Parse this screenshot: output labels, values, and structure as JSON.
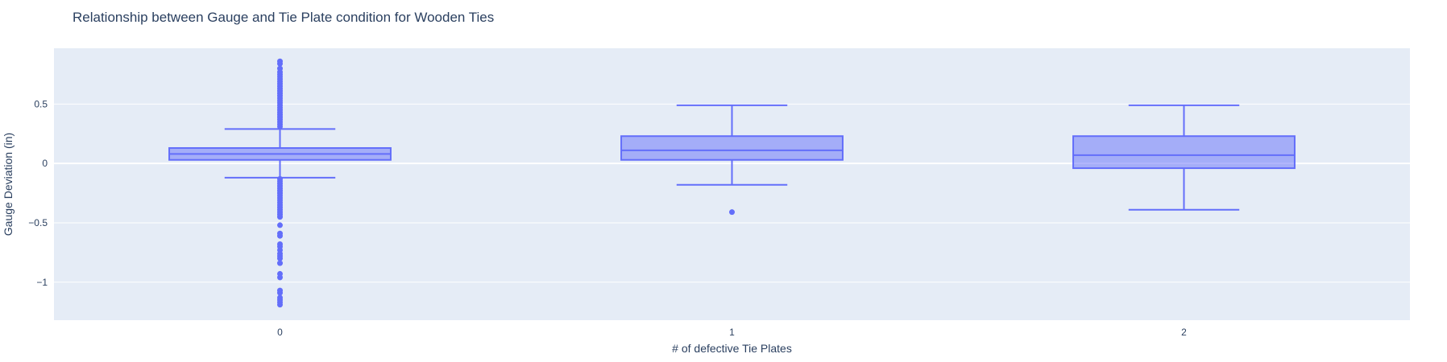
{
  "chart_data": {
    "type": "box",
    "title": "Relationship between Gauge and Tie Plate condition for Wooden Ties",
    "xlabel": "# of defective Tie Plates",
    "ylabel": "Gauge Deviation (in)",
    "ylim": [
      -1.32,
      0.97
    ],
    "yticks": [
      {
        "value": 0.5,
        "label": "0.5"
      },
      {
        "value": 0,
        "label": "0"
      },
      {
        "value": -0.5,
        "label": "−0.5"
      },
      {
        "value": -1,
        "label": "−1"
      }
    ],
    "grid": true,
    "colors": {
      "box_line": "#636efa",
      "box_fill": "rgba(99,110,250,0.5)",
      "plot_bg": "#e5ecf6",
      "grid": "#ffffff",
      "text": "#2a3f5f"
    },
    "categories": [
      "0",
      "1",
      "2"
    ],
    "boxes": [
      {
        "category": "0",
        "lower_whisker": -0.12,
        "q1": 0.03,
        "median": 0.08,
        "q3": 0.13,
        "upper_whisker": 0.29,
        "outliers": [
          0.86,
          0.84,
          0.8,
          0.77,
          0.75,
          0.73,
          0.71,
          0.69,
          0.67,
          0.65,
          0.63,
          0.61,
          0.59,
          0.57,
          0.55,
          0.53,
          0.51,
          0.49,
          0.47,
          0.45,
          0.43,
          0.41,
          0.39,
          0.37,
          0.35,
          0.33,
          0.31,
          -0.13,
          -0.15,
          -0.17,
          -0.19,
          -0.21,
          -0.23,
          -0.25,
          -0.27,
          -0.29,
          -0.31,
          -0.33,
          -0.35,
          -0.37,
          -0.39,
          -0.41,
          -0.43,
          -0.45,
          -0.52,
          -0.59,
          -0.61,
          -0.68,
          -0.7,
          -0.73,
          -0.76,
          -0.78,
          -0.8,
          -0.84,
          -0.93,
          -0.96,
          -1.07,
          -1.09,
          -1.13,
          -1.15,
          -1.17,
          -1.19
        ]
      },
      {
        "category": "1",
        "lower_whisker": -0.18,
        "q1": 0.03,
        "median": 0.11,
        "q3": 0.23,
        "upper_whisker": 0.49,
        "outliers": [
          -0.41
        ]
      },
      {
        "category": "2",
        "lower_whisker": -0.39,
        "q1": -0.04,
        "median": 0.07,
        "q3": 0.23,
        "upper_whisker": 0.49,
        "outliers": []
      }
    ]
  }
}
